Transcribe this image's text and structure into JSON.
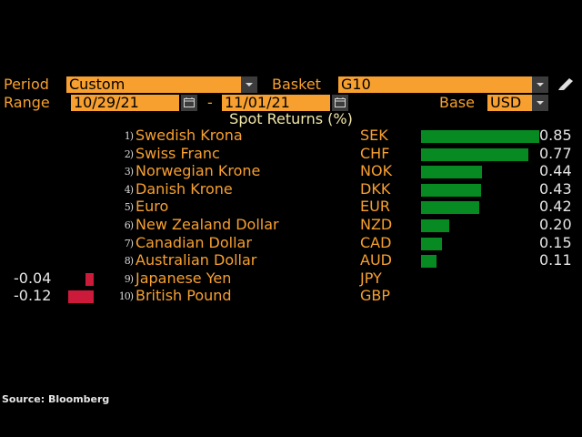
{
  "controls": {
    "period_label": "Period",
    "period_value": "Custom",
    "basket_label": "Basket",
    "basket_value": "G10",
    "range_label": "Range",
    "range_start": "10/29/21",
    "range_separator": "-",
    "range_end": "11/01/21",
    "base_label": "Base",
    "base_value": "USD"
  },
  "chart_data": {
    "type": "bar",
    "title": "Spot Returns (%)",
    "orientation": "horizontal",
    "categories": [
      "Swedish Krona",
      "Swiss Franc",
      "Norwegian Krone",
      "Danish Krone",
      "Euro",
      "New Zealand Dollar",
      "Canadian Dollar",
      "Australian Dollar",
      "Japanese Yen",
      "British Pound"
    ],
    "ranks": [
      "1)",
      "2)",
      "3)",
      "4)",
      "5)",
      "6)",
      "7)",
      "8)",
      "9)",
      "10)"
    ],
    "codes": [
      "SEK",
      "CHF",
      "NOK",
      "DKK",
      "EUR",
      "NZD",
      "CAD",
      "AUD",
      "JPY",
      "GBP"
    ],
    "values": [
      0.85,
      0.77,
      0.44,
      0.43,
      0.42,
      0.2,
      0.15,
      0.11,
      -0.04,
      -0.12
    ],
    "labels": [
      "0.85",
      "0.77",
      "0.44",
      "0.43",
      "0.42",
      "0.20",
      "0.15",
      "0.11",
      "-0.04",
      "-0.12"
    ],
    "colors": {
      "positive": "#078a22",
      "negative": "#cc1a3a"
    }
  },
  "footer": {
    "source": "Source: Bloomberg"
  }
}
